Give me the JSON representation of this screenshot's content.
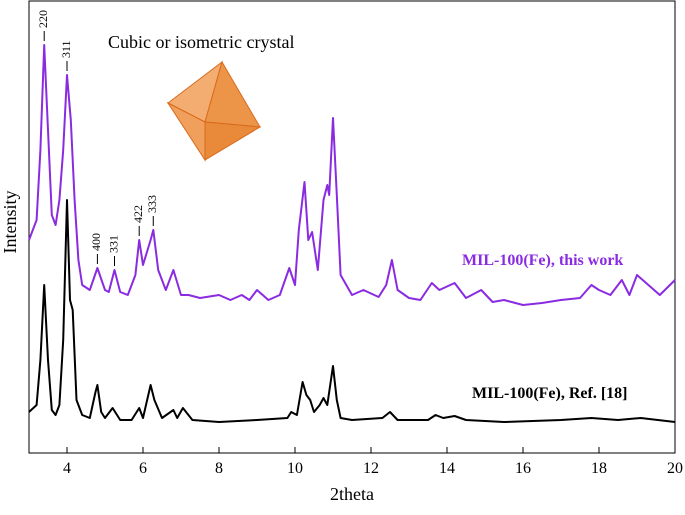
{
  "chart_data": {
    "type": "line",
    "annotation": "Cubic or isometric crystal",
    "xlabel": "2theta",
    "ylabel": "Intensity",
    "xlim": [
      3,
      20
    ],
    "xticks": [
      4,
      6,
      8,
      10,
      12,
      14,
      16,
      18,
      20
    ],
    "ylim": [
      0,
      453
    ],
    "series": [
      {
        "name": "MIL-100(Fe), this work",
        "color": "#8a2be2",
        "x": [
          3.0,
          3.2,
          3.3,
          3.4,
          3.5,
          3.6,
          3.7,
          3.8,
          3.9,
          4.0,
          4.1,
          4.2,
          4.3,
          4.4,
          4.6,
          4.8,
          5.0,
          5.1,
          5.25,
          5.4,
          5.6,
          5.8,
          5.9,
          6.0,
          6.2,
          6.27,
          6.4,
          6.6,
          6.8,
          7.0,
          7.2,
          7.5,
          8.0,
          8.3,
          8.6,
          8.8,
          9.0,
          9.3,
          9.6,
          9.85,
          10.0,
          10.1,
          10.25,
          10.35,
          10.45,
          10.6,
          10.75,
          10.85,
          10.9,
          11.0,
          11.1,
          11.2,
          11.5,
          11.8,
          12.2,
          12.4,
          12.55,
          12.7,
          13.0,
          13.3,
          13.6,
          13.8,
          14.2,
          14.5,
          14.9,
          15.2,
          15.5,
          16.0,
          16.5,
          17.0,
          17.5,
          17.8,
          18.0,
          18.3,
          18.6,
          18.8,
          19.0,
          19.3,
          19.6,
          20.0
        ],
        "values": [
          213,
          233,
          303,
          408,
          323,
          238,
          228,
          253,
          303,
          378,
          333,
          253,
          193,
          168,
          163,
          185,
          163,
          161,
          183,
          161,
          158,
          178,
          213,
          188,
          213,
          223,
          183,
          163,
          183,
          158,
          158,
          155,
          158,
          153,
          158,
          153,
          163,
          153,
          158,
          185,
          168,
          223,
          271,
          213,
          221,
          183,
          253,
          268,
          258,
          335,
          258,
          178,
          158,
          163,
          156,
          168,
          193,
          163,
          155,
          153,
          170,
          163,
          170,
          155,
          163,
          151,
          153,
          148,
          150,
          153,
          155,
          168,
          163,
          158,
          173,
          158,
          178,
          168,
          158,
          173
        ]
      },
      {
        "name": "MIL-100(Fe), Ref. [18]",
        "color": "#000000",
        "x": [
          3.0,
          3.2,
          3.3,
          3.4,
          3.5,
          3.6,
          3.7,
          3.8,
          3.9,
          4.0,
          4.08,
          4.15,
          4.25,
          4.4,
          4.6,
          4.75,
          4.8,
          4.9,
          5.0,
          5.2,
          5.4,
          5.7,
          5.9,
          6.0,
          6.2,
          6.3,
          6.5,
          6.8,
          6.9,
          7.05,
          7.3,
          8.0,
          9.0,
          9.8,
          9.9,
          10.05,
          10.2,
          10.3,
          10.4,
          10.5,
          10.65,
          10.75,
          10.85,
          11.0,
          11.1,
          11.2,
          11.5,
          12.3,
          12.5,
          12.7,
          13.5,
          13.7,
          13.9,
          14.2,
          14.5,
          15.5,
          17.0,
          17.8,
          18.5,
          19.1,
          20.0
        ],
        "values": [
          41,
          48,
          93,
          168,
          93,
          43,
          38,
          48,
          113,
          253,
          153,
          143,
          53,
          38,
          35,
          61,
          68,
          41,
          35,
          45,
          33,
          33,
          45,
          35,
          68,
          53,
          35,
          43,
          35,
          45,
          33,
          31,
          33,
          35,
          41,
          38,
          71,
          58,
          53,
          41,
          48,
          55,
          48,
          87,
          53,
          35,
          33,
          35,
          41,
          33,
          33,
          38,
          35,
          37,
          33,
          31,
          33,
          35,
          33,
          35,
          31
        ]
      }
    ],
    "peaks": [
      {
        "label": "220",
        "x": 3.4
      },
      {
        "label": "311",
        "x": 4.0
      },
      {
        "label": "400",
        "x": 4.8
      },
      {
        "label": "331",
        "x": 5.25
      },
      {
        "label": "422",
        "x": 5.9
      },
      {
        "label": "333",
        "x": 6.27
      }
    ]
  }
}
